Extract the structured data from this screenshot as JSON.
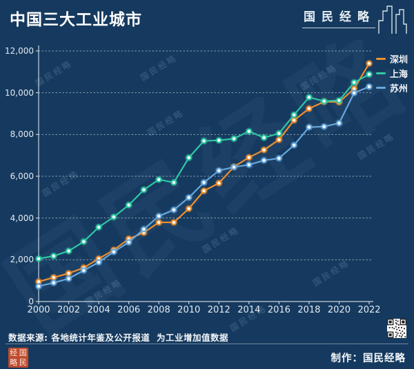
{
  "header": {
    "title": "中国三大工业城市",
    "logo_text": "国民经略"
  },
  "chart_data": {
    "type": "line",
    "x": [
      2000,
      2001,
      2002,
      2003,
      2004,
      2005,
      2006,
      2007,
      2008,
      2009,
      2010,
      2011,
      2012,
      2013,
      2014,
      2015,
      2016,
      2017,
      2018,
      2019,
      2020,
      2021,
      2022
    ],
    "series": [
      {
        "name": "深圳",
        "color": "#ee8f2e",
        "values": [
          950,
          1150,
          1350,
          1620,
          2050,
          2470,
          3000,
          3300,
          3790,
          3790,
          4450,
          5300,
          5670,
          6450,
          6900,
          7260,
          7750,
          8680,
          9240,
          9570,
          9550,
          10190,
          11400
        ]
      },
      {
        "name": "上海",
        "color": "#2fc9a4",
        "values": [
          2050,
          2180,
          2420,
          2870,
          3560,
          4050,
          4620,
          5350,
          5840,
          5700,
          6890,
          7690,
          7720,
          7800,
          8150,
          7850,
          8050,
          8940,
          9780,
          9590,
          9630,
          10490,
          10880
        ]
      },
      {
        "name": "苏州",
        "color": "#66a8de",
        "values": [
          730,
          900,
          1100,
          1490,
          1880,
          2380,
          2840,
          3460,
          4090,
          4390,
          4980,
          5700,
          6270,
          6440,
          6550,
          6760,
          6860,
          7490,
          8350,
          8380,
          8540,
          9990,
          10290
        ]
      }
    ],
    "ylim": [
      0,
      12000
    ],
    "yticks": [
      "0",
      "2,000",
      "4,000",
      "6,000",
      "8,000",
      "10,000",
      "12,000"
    ],
    "xticks": [
      "2000",
      "2002",
      "2004",
      "2006",
      "2008",
      "2010",
      "2012",
      "2014",
      "2016",
      "2018",
      "2020",
      "2022"
    ],
    "grid": "horizontal-dotted",
    "legend_position": "top-right",
    "title": "中国三大工业城市",
    "xlabel": "",
    "ylabel": ""
  },
  "watermark": {
    "text": "国民经略"
  },
  "footer": {
    "source": "数据来源: 各地统计年鉴及公开报道  为工业增加值数据",
    "credit": "制作：国民经略",
    "seal_chars": [
      "经",
      "国",
      "略",
      "民"
    ]
  }
}
